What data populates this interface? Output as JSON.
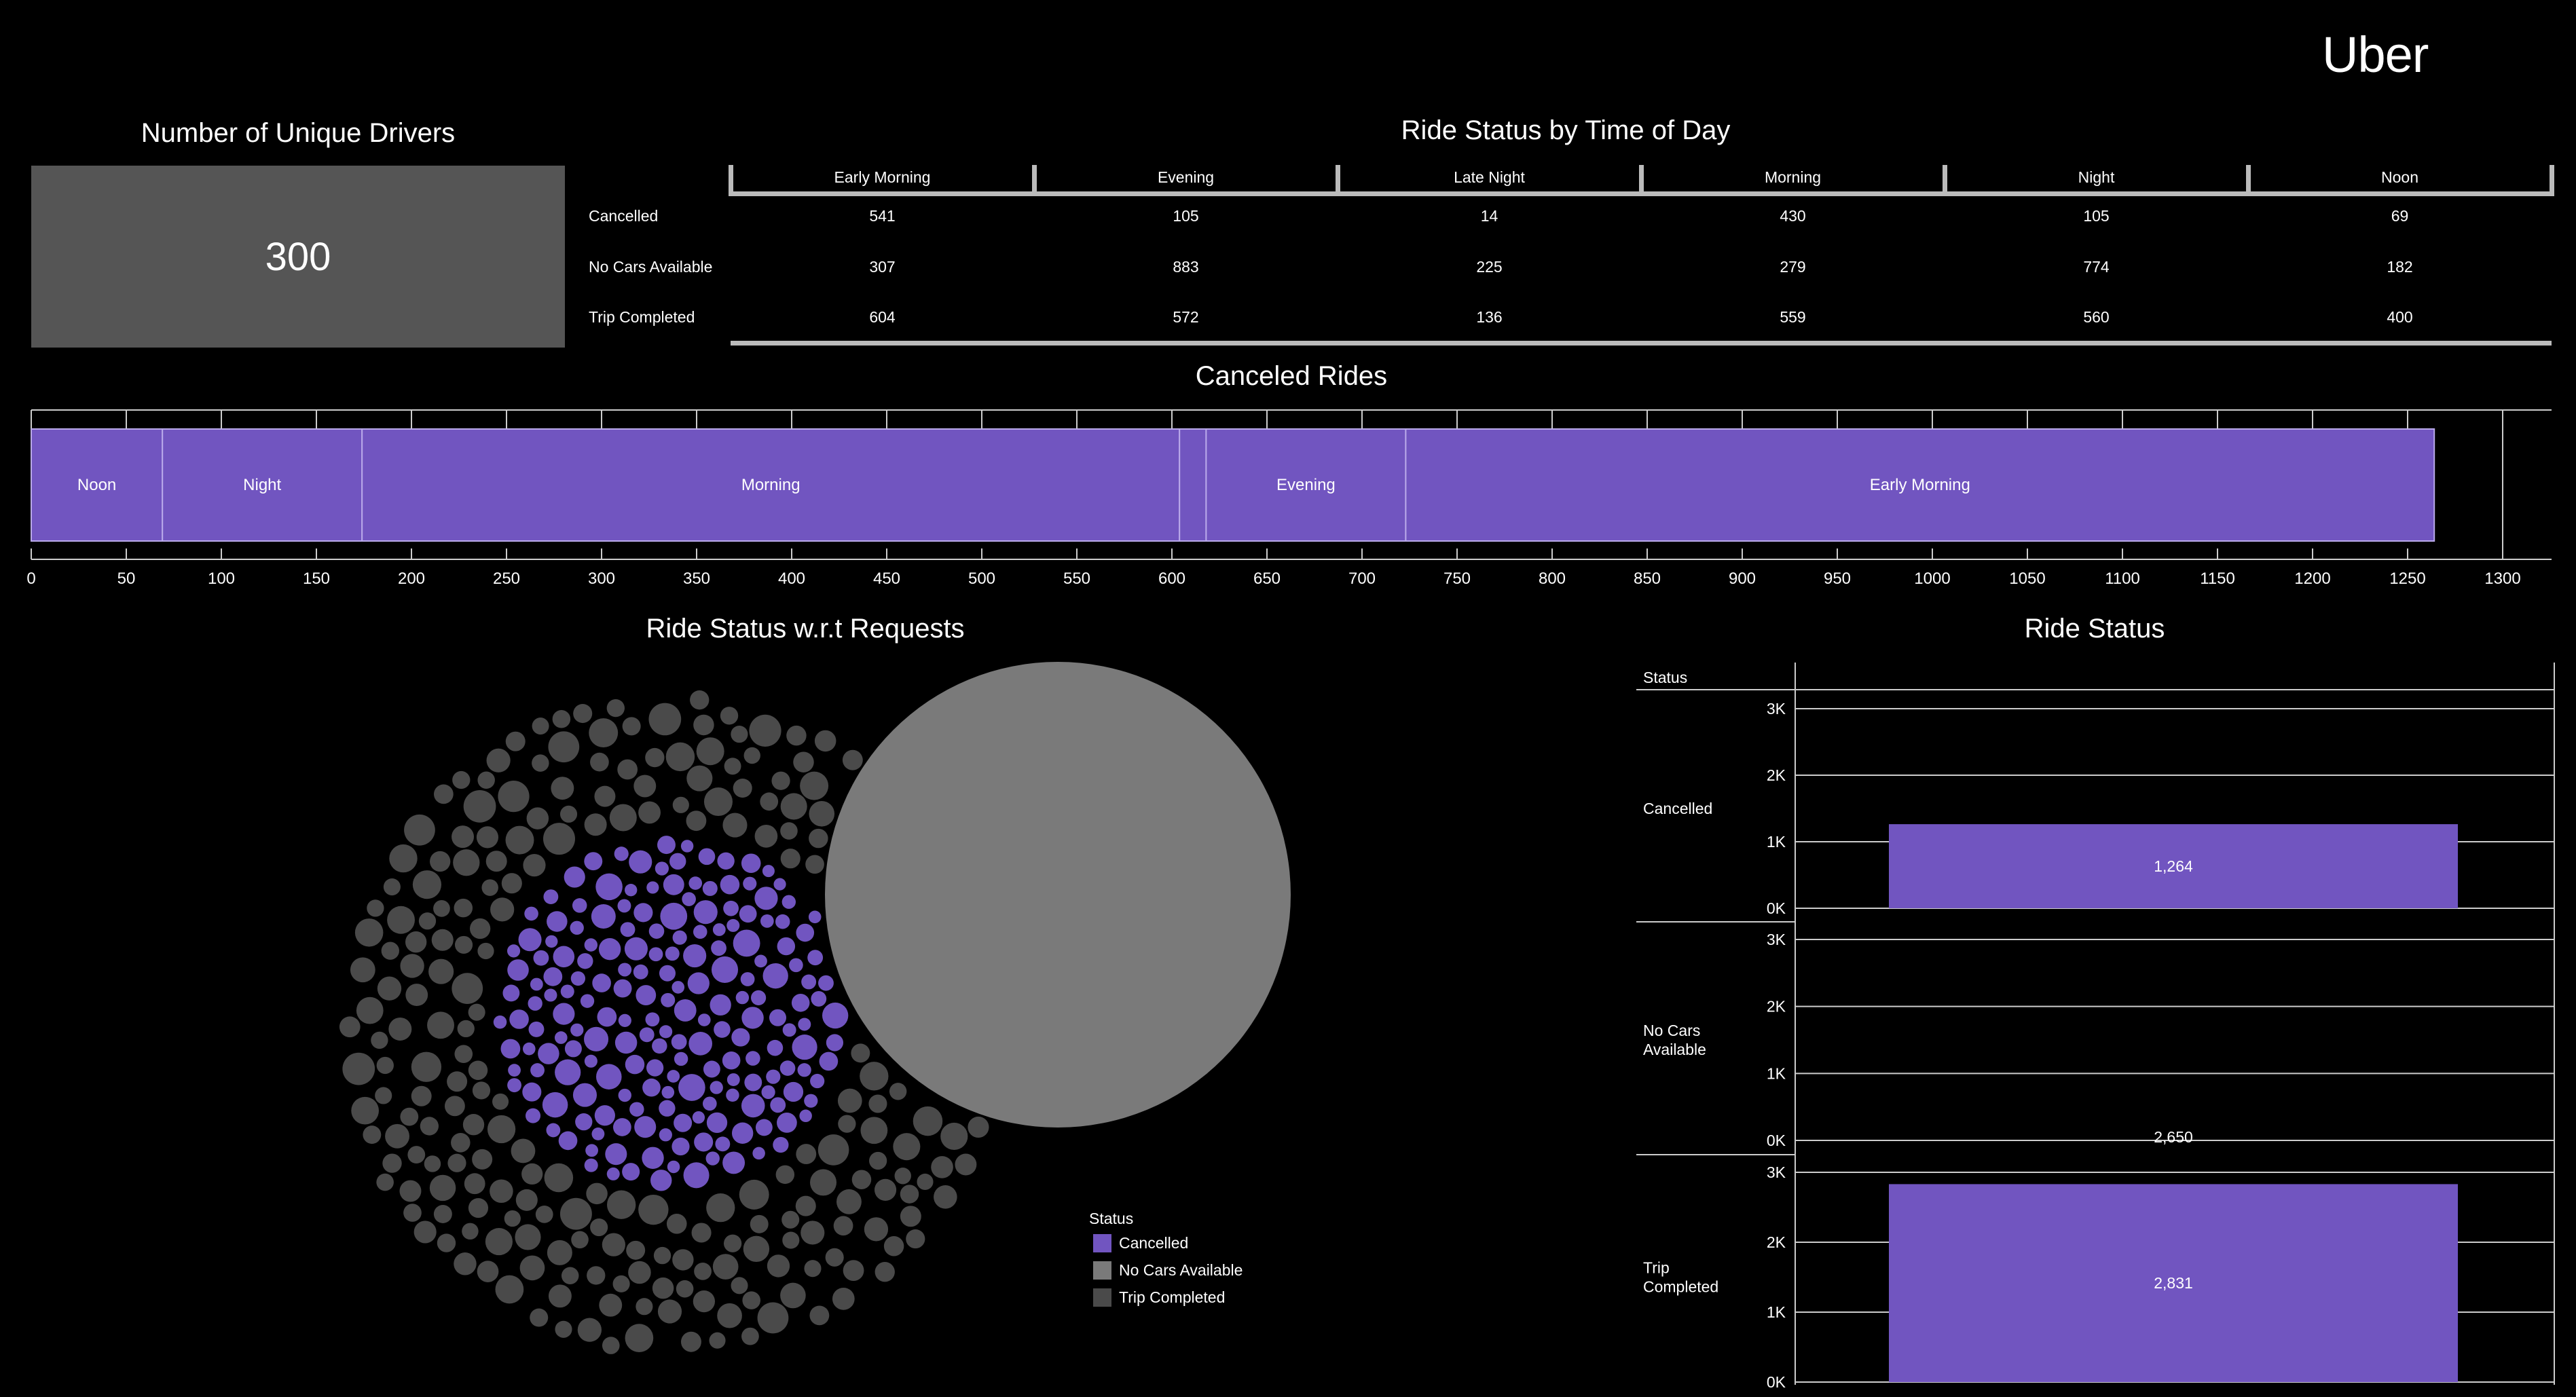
{
  "brand": "Uber",
  "colors": {
    "cancelled": "#7155C0",
    "no_cars": "#7A7A7A",
    "trip_completed": "#4A4A4A",
    "kpi_bg": "#555555"
  },
  "kpi": {
    "title": "Number of Unique Drivers",
    "value": "300"
  },
  "status_table": {
    "title": "Ride Status by Time of Day",
    "columns": [
      "Early Morning",
      "Evening",
      "Late Night",
      "Morning",
      "Night",
      "Noon"
    ],
    "rows": [
      {
        "label": "Cancelled",
        "values": [
          "541",
          "105",
          "14",
          "430",
          "105",
          "69"
        ]
      },
      {
        "label": "No Cars Available",
        "values": [
          "307",
          "883",
          "225",
          "279",
          "774",
          "182"
        ]
      },
      {
        "label": "Trip Completed",
        "values": [
          "604",
          "572",
          "136",
          "559",
          "560",
          "400"
        ]
      }
    ]
  },
  "chart_data": [
    {
      "type": "bar",
      "title": "Canceled Rides",
      "orientation": "horizontal-stacked",
      "segments": [
        {
          "label": "Noon",
          "value": 69
        },
        {
          "label": "Night",
          "value": 105
        },
        {
          "label": "Morning",
          "value": 430
        },
        {
          "label": "",
          "value": 14
        },
        {
          "label": "Evening",
          "value": 105
        },
        {
          "label": "Early Morning",
          "value": 541
        }
      ],
      "xlim": [
        0,
        1300
      ],
      "ticks": [
        "0",
        "50",
        "100",
        "150",
        "200",
        "250",
        "300",
        "350",
        "400",
        "450",
        "500",
        "550",
        "600",
        "650",
        "700",
        "750",
        "800",
        "850",
        "900",
        "950",
        "1000",
        "1050",
        "1100",
        "1150",
        "1200",
        "1250",
        "1300"
      ]
    },
    {
      "type": "scatter",
      "title": "Ride Status w.r.t Requests",
      "subtype": "packed-bubble",
      "legend_title": "Status",
      "legend": [
        "Cancelled",
        "No Cars Available",
        "Trip Completed"
      ]
    },
    {
      "type": "bar",
      "title": "Ride Status",
      "facet_header": "Status",
      "ylim": [
        0,
        3000
      ],
      "yticks": [
        "3K",
        "2K",
        "1K",
        "0K"
      ],
      "panels": [
        {
          "label": "Cancelled",
          "value": 1264,
          "value_label": "1,264"
        },
        {
          "label": "No Cars Available",
          "label_lines": [
            "No Cars",
            "Available"
          ],
          "value": 2650,
          "value_label": "2,650"
        },
        {
          "label": "Trip Completed",
          "label_lines": [
            "Trip",
            "Completed"
          ],
          "value": 2831,
          "value_label": "2,831"
        }
      ]
    }
  ]
}
